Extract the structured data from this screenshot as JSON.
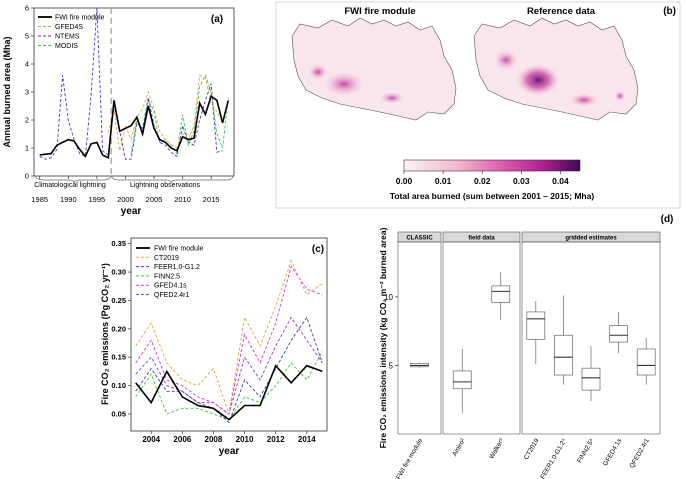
{
  "panel_a": {
    "label": "(a)",
    "ylabel": "Annual burned area (Mha)",
    "xlabel": "year",
    "region_labels": [
      "Climatological lightning",
      "Lightning observations"
    ]
  },
  "panel_b": {
    "label": "(b)",
    "titles": [
      "FWI fire module",
      "Reference data"
    ],
    "colorbar_label": "Total area burned (sum between  2001 – 2015; Mha)"
  },
  "panel_c": {
    "label": "(c)",
    "ylabel": "Fire CO₂ emissions (Pg CO₂ yr⁻¹)",
    "xlabel": "year"
  },
  "panel_d": {
    "label": "(d)",
    "ylabel": "Fire CO₂ emissions intensity (kg CO₂ m⁻² burned area)",
    "group_labels": [
      "CLASSIC",
      "field data",
      "gridded estimates"
    ]
  },
  "chart_data": [
    {
      "id": "a",
      "type": "line",
      "xlabel": "year",
      "ylabel": "Annual burned area (Mha)",
      "xlim": [
        1984,
        2019
      ],
      "ylim": [
        0,
        6
      ],
      "x_ticks": [
        1985,
        1990,
        1995,
        2000,
        2005,
        2010,
        2015
      ],
      "y_ticks": [
        0,
        1,
        2,
        3,
        4,
        5,
        6
      ],
      "legend": "top-left",
      "x": [
        1985,
        1986,
        1987,
        1988,
        1989,
        1990,
        1991,
        1992,
        1993,
        1994,
        1995,
        1996,
        1997,
        1998,
        1999,
        2000,
        2001,
        2002,
        2003,
        2004,
        2005,
        2006,
        2007,
        2008,
        2009,
        2010,
        2011,
        2012,
        2013,
        2014,
        2015,
        2016,
        2017,
        2018
      ],
      "series": [
        {
          "name": "FWI fire module",
          "color": "#000000",
          "dash": false,
          "values": [
            0.75,
            0.78,
            0.8,
            1.1,
            1.2,
            1.3,
            1.25,
            0.95,
            0.7,
            1.15,
            1.2,
            0.75,
            0.65,
            2.7,
            1.6,
            1.7,
            1.8,
            2.1,
            1.5,
            2.5,
            1.7,
            1.3,
            1.2,
            1.0,
            0.9,
            1.4,
            1.3,
            1.35,
            2.6,
            2.2,
            2.85,
            2.7,
            1.9,
            2.7
          ]
        },
        {
          "name": "GFED4S",
          "color": "#f0a030",
          "dash": true,
          "values": [
            null,
            null,
            null,
            null,
            null,
            null,
            null,
            null,
            null,
            null,
            null,
            null,
            1.55,
            2.35,
            0.9,
            1.8,
            1.3,
            2.1,
            2.4,
            3.0,
            2.4,
            1.6,
            1.3,
            1.1,
            1.0,
            1.5,
            1.3,
            1.8,
            3.6,
            3.5,
            2.6,
            2.3,
            1.9,
            2.7
          ]
        },
        {
          "name": "NTEMS",
          "color": "#3a3ad8",
          "dash": true,
          "values": [
            0.7,
            0.6,
            0.65,
            0.95,
            3.6,
            2.0,
            1.3,
            0.8,
            0.7,
            2.9,
            6.0,
            0.9,
            0.75,
            2.5,
            1.6,
            0.6,
            0.6,
            1.9,
            1.7,
            2.8,
            1.8,
            1.2,
            1.1,
            0.85,
            0.7,
            1.8,
            1.2,
            1.1,
            2.0,
            2.7,
            3.3,
            0.85,
            0.9,
            null
          ]
        },
        {
          "name": "MODIS",
          "color": "#30d030",
          "dash": true,
          "values": [
            null,
            null,
            null,
            null,
            null,
            null,
            null,
            null,
            null,
            null,
            null,
            null,
            null,
            null,
            null,
            null,
            0.8,
            2.0,
            1.6,
            2.7,
            2.3,
            1.2,
            1.3,
            1.1,
            0.8,
            2.2,
            1.1,
            1.6,
            3.2,
            3.6,
            3.0,
            1.5,
            1.0,
            2.8
          ]
        }
      ]
    },
    {
      "id": "b",
      "type": "heatmap",
      "titles": [
        "FWI fire module",
        "Reference data"
      ],
      "colorbar_ticks": [
        0.0,
        0.01,
        0.02,
        0.03,
        0.04
      ],
      "colorbar_range": [
        0,
        0.045
      ],
      "colorbar_label": "Total area burned (sum between  2001 – 2015; Mha)"
    },
    {
      "id": "c",
      "type": "line",
      "xlabel": "year",
      "ylabel": "Fire CO₂ emissions (Pg CO₂ yr⁻¹)",
      "xlim": [
        2002.7,
        2015.3
      ],
      "ylim": [
        0.02,
        0.36
      ],
      "x_ticks": [
        2004,
        2006,
        2008,
        2010,
        2012,
        2014
      ],
      "y_ticks": [
        0.05,
        0.1,
        0.15,
        0.2,
        0.25,
        0.3,
        0.35
      ],
      "legend": "top-left",
      "x": [
        2003,
        2004,
        2005,
        2006,
        2007,
        2008,
        2009,
        2010,
        2011,
        2012,
        2013,
        2014,
        2015
      ],
      "series": [
        {
          "name": "FWI fire module",
          "color": "#000000",
          "dash": false,
          "values": [
            0.105,
            0.07,
            0.125,
            0.08,
            0.065,
            0.06,
            0.04,
            0.065,
            0.065,
            0.135,
            0.105,
            0.135,
            0.125
          ]
        },
        {
          "name": "CT2019",
          "color": "#f0a030",
          "dash": true,
          "values": [
            0.17,
            0.21,
            0.14,
            0.11,
            0.1,
            0.13,
            0.05,
            0.22,
            0.17,
            0.24,
            0.32,
            0.26,
            0.28
          ]
        },
        {
          "name": "FEER1.0-G1.2",
          "color": "#3a3ad8",
          "dash": true,
          "values": [
            0.09,
            0.13,
            0.09,
            0.09,
            0.07,
            0.06,
            0.035,
            0.11,
            0.08,
            0.13,
            0.18,
            0.22,
            0.14
          ]
        },
        {
          "name": "FINN2.5",
          "color": "#30d030",
          "dash": true,
          "values": [
            0.08,
            0.12,
            0.05,
            0.06,
            0.06,
            0.05,
            0.04,
            0.08,
            0.07,
            0.1,
            0.14,
            0.11,
            0.16
          ]
        },
        {
          "name": "GFED4.1s",
          "color": "#e030e0",
          "dash": true,
          "values": [
            0.14,
            0.18,
            0.11,
            0.1,
            0.08,
            0.07,
            0.05,
            0.19,
            0.14,
            0.21,
            0.31,
            0.27,
            0.26
          ]
        },
        {
          "name": "QFED2.4r1",
          "color": "#9b30e0",
          "dash": true,
          "values": [
            0.12,
            0.15,
            0.1,
            0.09,
            0.07,
            0.07,
            0.05,
            0.15,
            0.11,
            0.17,
            0.22,
            0.18,
            0.14
          ]
        }
      ]
    },
    {
      "id": "d",
      "type": "box",
      "ylabel": "Fire CO₂ emissions intensity (kg CO₂ m⁻² burned area)",
      "ylim": [
        0,
        14
      ],
      "y_ticks": [
        5,
        10
      ],
      "groups": [
        "CLASSIC",
        "field data",
        "gridded estimates"
      ],
      "categories": [
        "FWI fire module",
        "Amiro²",
        "Walker³",
        "CT2019",
        "FEER1.0-G1.2⁴",
        "FINN2.5⁵",
        "GFED4.1s",
        "QFED2.4r1"
      ],
      "category_groups": [
        0,
        1,
        1,
        2,
        2,
        2,
        2,
        2
      ],
      "boxes": [
        {
          "min": 4.8,
          "q1": 4.9,
          "median": 5.0,
          "q3": 5.15,
          "max": 5.2
        },
        {
          "min": 1.5,
          "q1": 3.3,
          "median": 3.8,
          "q3": 4.6,
          "max": 6.2
        },
        {
          "min": 8.3,
          "q1": 9.6,
          "median": 10.4,
          "q3": 10.8,
          "max": 11.8
        },
        {
          "min": 5.1,
          "q1": 6.9,
          "median": 8.4,
          "q3": 8.9,
          "max": 9.7
        },
        {
          "min": 3.6,
          "q1": 4.3,
          "median": 5.6,
          "q3": 7.2,
          "max": 10.1
        },
        {
          "min": 2.4,
          "q1": 3.2,
          "median": 4.1,
          "q3": 4.8,
          "max": 6.4
        },
        {
          "min": 5.9,
          "q1": 6.7,
          "median": 7.2,
          "q3": 7.9,
          "max": 8.9
        },
        {
          "min": 3.6,
          "q1": 4.3,
          "median": 5.0,
          "q3": 6.2,
          "max": 7.0
        }
      ]
    }
  ]
}
